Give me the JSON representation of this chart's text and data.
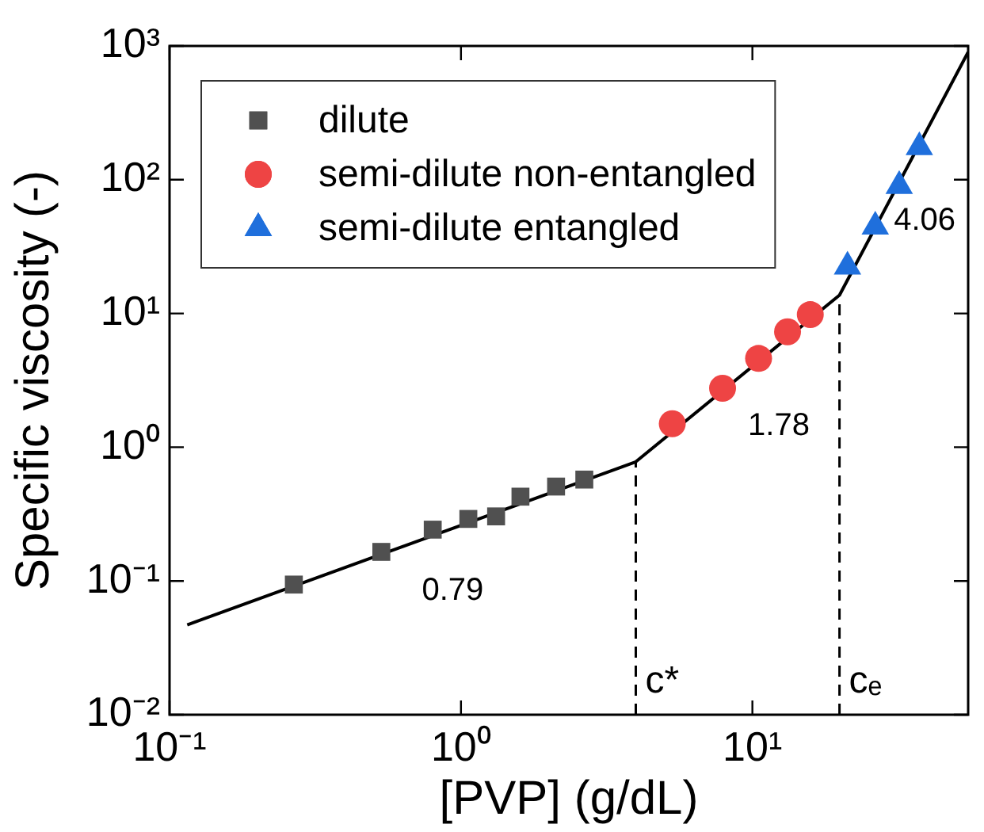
{
  "chart_data": {
    "type": "scatter",
    "xlabel": "[PVP] (g/dL)",
    "ylabel": "Specific viscosity (-)",
    "log": "xy",
    "grid": false,
    "legend": "top left",
    "xlim": [
      0.1,
      55
    ],
    "ylim": [
      0.01,
      1000
    ],
    "xticks": [
      {
        "value": 0.1,
        "label": "10⁻¹"
      },
      {
        "value": 1,
        "label": "10⁰"
      },
      {
        "value": 10,
        "label": "10¹"
      }
    ],
    "yticks": [
      {
        "value": 0.01,
        "label": "10⁻²"
      },
      {
        "value": 0.1,
        "label": "10⁻¹"
      },
      {
        "value": 1,
        "label": "10⁰"
      },
      {
        "value": 10,
        "label": "10¹"
      },
      {
        "value": 100,
        "label": "10²"
      },
      {
        "value": 1000,
        "label": "10³"
      }
    ],
    "series": [
      {
        "name": "dilute",
        "color": "#505050",
        "marker": "square",
        "x": [
          0.267,
          0.533,
          0.8,
          1.06,
          1.32,
          1.6,
          2.12,
          2.65
        ],
        "values": [
          0.094,
          0.165,
          0.242,
          0.291,
          0.304,
          0.427,
          0.508,
          0.573
        ]
      },
      {
        "name": "semi-dilute non-entangled",
        "color": "#ee4444",
        "marker": "circle",
        "x": [
          5.31,
          7.9,
          10.5,
          13.2,
          15.8
        ],
        "values": [
          1.5,
          2.76,
          4.61,
          7.3,
          9.8
        ]
      },
      {
        "name": "semi-dilute entangled",
        "color": "#1f6fdc",
        "marker": "triangle",
        "x": [
          21.2,
          26.4,
          31.9,
          37.4
        ],
        "values": [
          22.4,
          44.6,
          89.8,
          175
        ]
      },
      {
        "type": "line",
        "color": "#000000",
        "marker": "none",
        "x": [
          0.115,
          3.98,
          19.9,
          55
        ],
        "values": [
          0.047,
          0.778,
          13.7,
          900
        ]
      }
    ],
    "ref_lines": [
      {
        "axis": "x",
        "value": 3.98,
        "label": "c*",
        "line_style": "dashed",
        "color": "#000000"
      },
      {
        "axis": "x",
        "value": 19.9,
        "label": "cₑ",
        "line_style": "dashed",
        "color": "#000000"
      }
    ],
    "annotations": [
      "0.79",
      "1.78",
      "4.06"
    ]
  }
}
